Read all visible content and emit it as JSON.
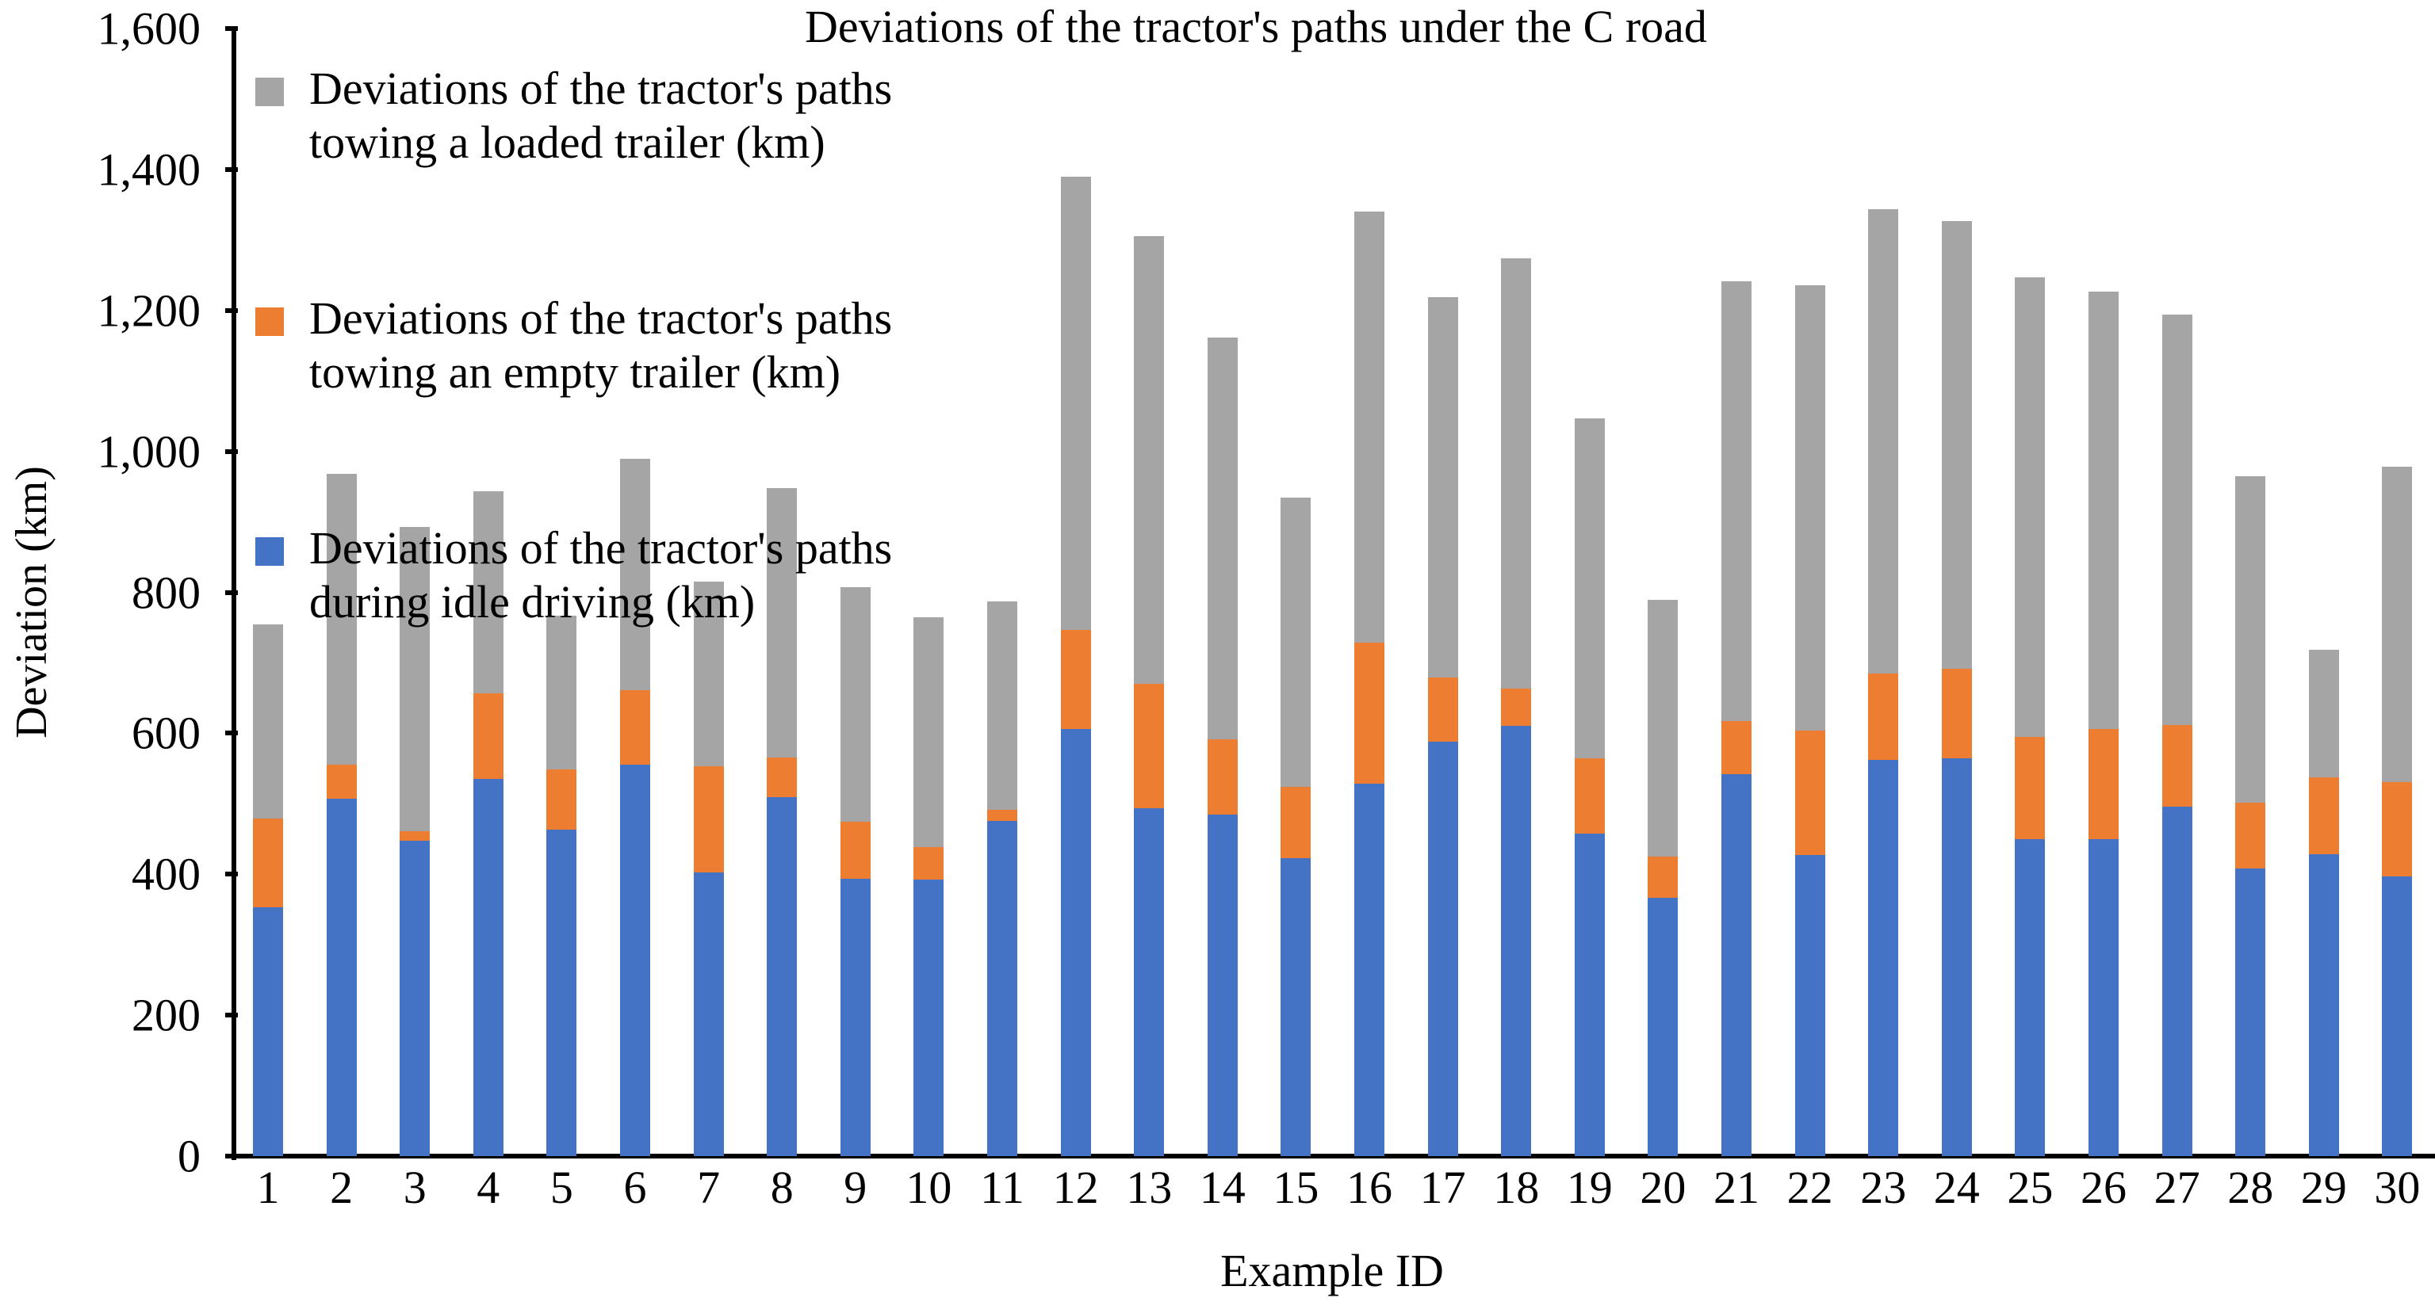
{
  "chart_data": {
    "type": "bar",
    "stacked": true,
    "title": "Deviations of the tractor's paths under the C road",
    "xlabel": "Example ID",
    "ylabel": "Deviation (km)",
    "ylim": [
      0,
      1600
    ],
    "yticks": [
      "0",
      "200",
      "400",
      "600",
      "800",
      "1,000",
      "1,200",
      "1,400",
      "1,600"
    ],
    "grid": false,
    "legend_position": "upper-left",
    "categories": [
      "1",
      "2",
      "3",
      "4",
      "5",
      "6",
      "7",
      "8",
      "9",
      "10",
      "11",
      "12",
      "13",
      "14",
      "15",
      "16",
      "17",
      "18",
      "19",
      "20",
      "21",
      "22",
      "23",
      "24",
      "25",
      "26",
      "27",
      "28",
      "29",
      "30"
    ],
    "series": [
      {
        "name": "Deviations of the tractor's paths during idle driving (km)",
        "color": "#4472C4",
        "values": [
          353,
          507,
          448,
          535,
          463,
          555,
          403,
          509,
          394,
          392,
          476,
          606,
          494,
          485,
          423,
          529,
          588,
          610,
          458,
          366,
          542,
          427,
          562,
          564,
          450,
          450,
          496,
          408,
          428,
          397
        ]
      },
      {
        "name": "Deviations of the tractor's paths towing an empty trailer (km)",
        "color": "#ED7D31",
        "values": [
          126,
          48,
          13,
          122,
          86,
          106,
          150,
          57,
          80,
          47,
          15,
          141,
          176,
          106,
          101,
          200,
          91,
          53,
          106,
          59,
          75,
          177,
          123,
          128,
          145,
          156,
          116,
          94,
          110,
          134
        ]
      },
      {
        "name": "Deviations of the tractor's paths towing a loaded trailer (km)",
        "color": "#A5A5A5",
        "values": [
          275,
          413,
          432,
          286,
          218,
          328,
          262,
          382,
          333,
          326,
          296,
          643,
          635,
          570,
          410,
          611,
          540,
          611,
          483,
          364,
          624,
          632,
          659,
          635,
          652,
          621,
          582,
          463,
          180,
          447
        ]
      }
    ],
    "totals": [
      754,
      968,
      893,
      943,
      767,
      989,
      815,
      948,
      807,
      765,
      787,
      1390,
      1305,
      1161,
      934,
      1340,
      1219,
      1274,
      1047,
      789,
      1241,
      1236,
      1344,
      1327,
      1247,
      1227,
      1194,
      965,
      718,
      978
    ]
  },
  "legend": {
    "items": [
      {
        "line1": "Deviations of the tractor's paths",
        "line2": "towing a loaded trailer (km)",
        "color": "#A5A5A5"
      },
      {
        "line1": "Deviations of the tractor's paths",
        "line2": "towing an empty trailer (km)",
        "color": "#ED7D31"
      },
      {
        "line1": "Deviations of the tractor's paths",
        "line2": "during idle driving (km)",
        "color": "#4472C4"
      }
    ]
  }
}
